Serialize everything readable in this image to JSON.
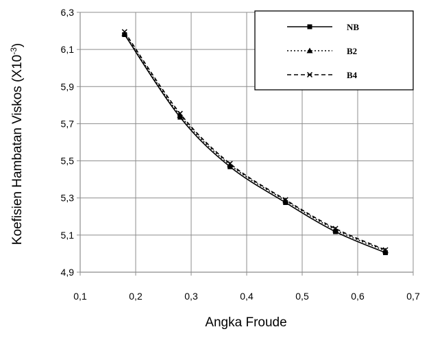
{
  "chart_data": {
    "type": "line",
    "title": "",
    "xlabel": "Angka Froude",
    "ylabel_main": "Koefisien Hambatan Viskos (X10",
    "ylabel_exp": "-3",
    "ylabel_close": ")",
    "xlim": [
      0.1,
      0.7
    ],
    "ylim": [
      4.9,
      6.3
    ],
    "x_ticks": [
      0.1,
      0.2,
      0.3,
      0.4,
      0.5,
      0.6,
      0.7
    ],
    "x_tick_labels": [
      "0,1",
      "0,2",
      "0,3",
      "0,4",
      "0,5",
      "0,6",
      "0,7"
    ],
    "y_ticks": [
      4.9,
      5.1,
      5.3,
      5.5,
      5.7,
      5.9,
      6.1,
      6.3
    ],
    "y_tick_labels": [
      "4,9",
      "5,1",
      "5,3",
      "5,5",
      "5,7",
      "5,9",
      "6,1",
      "6,3"
    ],
    "grid": true,
    "legend_position": "top-right",
    "series": [
      {
        "name": "NB",
        "line_style": "solid",
        "marker": "square",
        "x": [
          0.18,
          0.28,
          0.37,
          0.47,
          0.56,
          0.65
        ],
        "y": [
          6.18,
          5.735,
          5.468,
          5.275,
          5.118,
          5.005
        ]
      },
      {
        "name": "B2",
        "line_style": "dotted",
        "marker": "triangle",
        "x": [
          0.18,
          0.28,
          0.37,
          0.47,
          0.56,
          0.65
        ],
        "y": [
          6.185,
          5.745,
          5.478,
          5.285,
          5.128,
          5.015
        ]
      },
      {
        "name": "B4",
        "line_style": "dashed",
        "marker": "x",
        "x": [
          0.18,
          0.28,
          0.37,
          0.47,
          0.56,
          0.65
        ],
        "y": [
          6.195,
          5.755,
          5.485,
          5.29,
          5.135,
          5.02
        ]
      }
    ]
  }
}
